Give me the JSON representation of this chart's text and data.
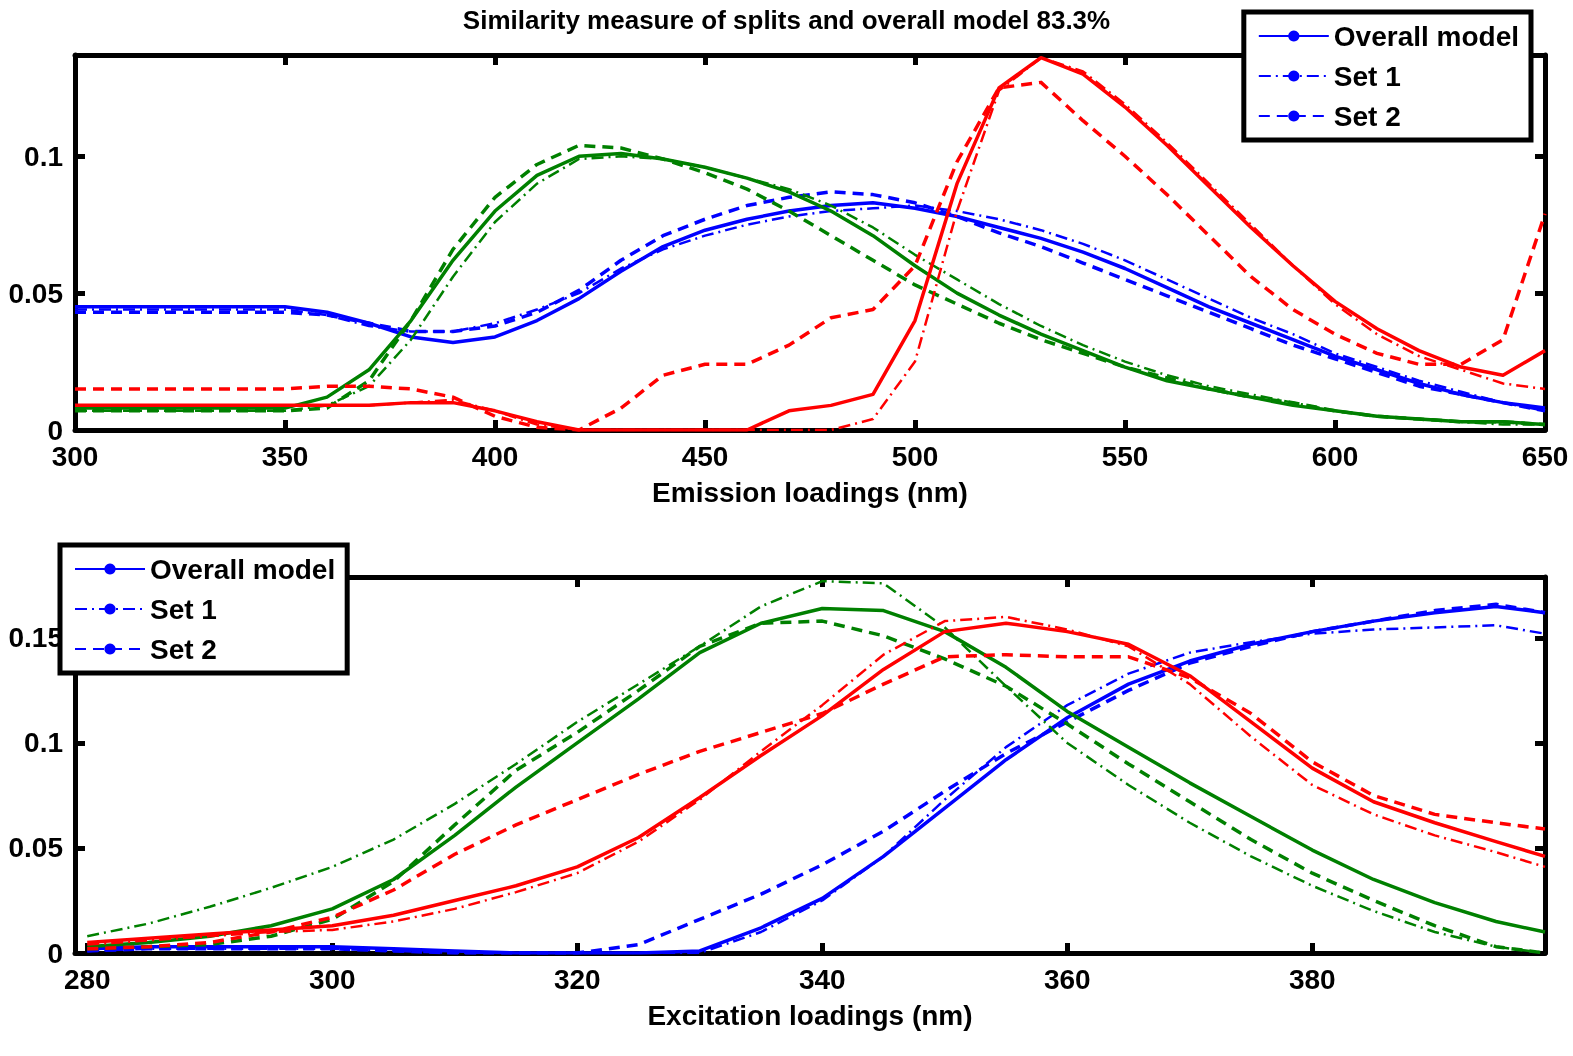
{
  "chart_data": [
    {
      "type": "line",
      "title": "Similarity measure of splits and overall model 83.3%",
      "xlabel": "Emission loadings (nm)",
      "legend": "top right",
      "x": [
        300,
        320,
        340,
        350,
        360,
        370,
        380,
        390,
        400,
        410,
        420,
        430,
        440,
        450,
        460,
        470,
        480,
        490,
        500,
        510,
        520,
        530,
        540,
        550,
        560,
        570,
        580,
        590,
        600,
        610,
        620,
        630,
        640,
        650
      ],
      "xlim": [
        300,
        650
      ],
      "xticks": [
        300,
        350,
        400,
        450,
        500,
        550,
        600,
        650
      ],
      "ylim": [
        0,
        0.137
      ],
      "yticks": [
        0,
        0.05,
        0.1
      ],
      "series": [
        {
          "name": "Overall model",
          "color": "#0000ff",
          "line_style": "solid",
          "values": [
            0.045,
            0.045,
            0.045,
            0.045,
            0.043,
            0.039,
            0.034,
            0.032,
            0.034,
            0.04,
            0.048,
            0.058,
            0.067,
            0.073,
            0.077,
            0.08,
            0.082,
            0.083,
            0.081,
            0.078,
            0.074,
            0.07,
            0.065,
            0.059,
            0.052,
            0.045,
            0.039,
            0.033,
            0.027,
            0.022,
            0.017,
            0.013,
            0.01,
            0.008
          ]
        },
        {
          "name": "Set 1",
          "color": "#0000ff",
          "line_style": "dashdot",
          "values": [
            0.044,
            0.044,
            0.044,
            0.044,
            0.042,
            0.038,
            0.036,
            0.036,
            0.039,
            0.044,
            0.05,
            0.059,
            0.066,
            0.071,
            0.075,
            0.078,
            0.08,
            0.081,
            0.082,
            0.08,
            0.077,
            0.073,
            0.068,
            0.062,
            0.055,
            0.048,
            0.041,
            0.035,
            0.028,
            0.023,
            0.018,
            0.014,
            0.01,
            0.007
          ]
        },
        {
          "name": "Set 2",
          "color": "#0000ff",
          "line_style": "dashed",
          "values": [
            0.043,
            0.043,
            0.043,
            0.043,
            0.042,
            0.039,
            0.036,
            0.036,
            0.038,
            0.043,
            0.051,
            0.062,
            0.071,
            0.077,
            0.082,
            0.085,
            0.087,
            0.086,
            0.083,
            0.078,
            0.072,
            0.067,
            0.061,
            0.055,
            0.049,
            0.043,
            0.037,
            0.031,
            0.026,
            0.021,
            0.016,
            0.013,
            0.01,
            0.007
          ]
        },
        {
          "color": "#008000",
          "line_style": "solid",
          "values": [
            0.008,
            0.008,
            0.008,
            0.008,
            0.012,
            0.022,
            0.04,
            0.062,
            0.08,
            0.093,
            0.1,
            0.101,
            0.099,
            0.096,
            0.092,
            0.087,
            0.08,
            0.071,
            0.06,
            0.05,
            0.042,
            0.035,
            0.029,
            0.023,
            0.018,
            0.015,
            0.012,
            0.009,
            0.007,
            0.005,
            0.004,
            0.003,
            0.003,
            0.002
          ]
        },
        {
          "color": "#008000",
          "line_style": "dashdot",
          "values": [
            0.007,
            0.007,
            0.007,
            0.007,
            0.009,
            0.016,
            0.033,
            0.056,
            0.076,
            0.09,
            0.099,
            0.1,
            0.099,
            0.096,
            0.092,
            0.088,
            0.082,
            0.074,
            0.064,
            0.055,
            0.046,
            0.038,
            0.031,
            0.025,
            0.02,
            0.016,
            0.013,
            0.01,
            0.007,
            0.005,
            0.004,
            0.003,
            0.002,
            0.002
          ]
        },
        {
          "color": "#008000",
          "line_style": "dashed",
          "values": [
            0.007,
            0.007,
            0.007,
            0.007,
            0.008,
            0.018,
            0.04,
            0.066,
            0.085,
            0.097,
            0.104,
            0.103,
            0.099,
            0.094,
            0.088,
            0.08,
            0.071,
            0.062,
            0.053,
            0.046,
            0.039,
            0.033,
            0.028,
            0.023,
            0.019,
            0.015,
            0.012,
            0.01,
            0.007,
            0.005,
            0.004,
            0.003,
            0.003,
            0.002
          ]
        },
        {
          "color": "#ff0000",
          "line_style": "solid",
          "values": [
            0.009,
            0.009,
            0.009,
            0.009,
            0.009,
            0.009,
            0.01,
            0.01,
            0.007,
            0.003,
            0,
            0,
            0,
            0,
            0,
            0.007,
            0.009,
            0.013,
            0.04,
            0.09,
            0.125,
            0.136,
            0.13,
            0.118,
            0.104,
            0.089,
            0.074,
            0.06,
            0.047,
            0.037,
            0.029,
            0.023,
            0.02,
            0.029
          ]
        },
        {
          "color": "#ff0000",
          "line_style": "dashdot",
          "values": [
            0.009,
            0.009,
            0.009,
            0.009,
            0.009,
            0.009,
            0.01,
            0.011,
            0.007,
            0.002,
            0,
            0,
            0,
            0,
            0,
            0,
            0,
            0.004,
            0.025,
            0.08,
            0.124,
            0.136,
            0.131,
            0.119,
            0.105,
            0.09,
            0.075,
            0.06,
            0.046,
            0.035,
            0.027,
            0.022,
            0.017,
            0.015
          ]
        },
        {
          "color": "#ff0000",
          "line_style": "dashed",
          "values": [
            0.015,
            0.015,
            0.015,
            0.015,
            0.016,
            0.016,
            0.015,
            0.012,
            0.005,
            0.001,
            0,
            0.008,
            0.02,
            0.024,
            0.024,
            0.031,
            0.041,
            0.044,
            0.06,
            0.098,
            0.125,
            0.127,
            0.113,
            0.1,
            0.086,
            0.071,
            0.056,
            0.044,
            0.035,
            0.028,
            0.024,
            0.024,
            0.033,
            0.079
          ]
        }
      ]
    },
    {
      "type": "line",
      "xlabel": "Excitation loadings (nm)",
      "legend": "top left",
      "x": [
        280,
        285,
        290,
        295,
        300,
        305,
        310,
        315,
        320,
        325,
        330,
        335,
        340,
        345,
        350,
        355,
        360,
        365,
        370,
        375,
        380,
        385,
        390,
        395,
        399
      ],
      "xlim": [
        279,
        399
      ],
      "xticks": [
        280,
        300,
        320,
        340,
        360,
        380
      ],
      "ylim": [
        0,
        0.179
      ],
      "yticks": [
        0,
        0.05,
        0.1,
        0.15
      ],
      "series": [
        {
          "name": "Overall model",
          "color": "#0000ff",
          "line_style": "solid",
          "values": [
            0.002,
            0.003,
            0.003,
            0.003,
            0.003,
            0.002,
            0.001,
            0,
            0,
            0,
            0.001,
            0.012,
            0.026,
            0.046,
            0.069,
            0.092,
            0.112,
            0.128,
            0.139,
            0.147,
            0.153,
            0.158,
            0.162,
            0.165,
            0.162
          ]
        },
        {
          "name": "Set 1",
          "color": "#0000ff",
          "line_style": "dashdot",
          "values": [
            0.001,
            0.002,
            0.002,
            0.002,
            0.002,
            0.001,
            0,
            0,
            0,
            0,
            0,
            0.01,
            0.025,
            0.046,
            0.073,
            0.098,
            0.118,
            0.133,
            0.143,
            0.148,
            0.152,
            0.154,
            0.155,
            0.156,
            0.152
          ]
        },
        {
          "name": "Set 2",
          "color": "#0000ff",
          "line_style": "dashed",
          "values": [
            0.001,
            0.002,
            0.002,
            0.002,
            0.002,
            0.001,
            0,
            0,
            0,
            0.004,
            0.016,
            0.028,
            0.042,
            0.058,
            0.077,
            0.095,
            0.11,
            0.125,
            0.138,
            0.146,
            0.153,
            0.158,
            0.163,
            0.166,
            0.162
          ]
        },
        {
          "color": "#008000",
          "line_style": "solid",
          "values": [
            0.003,
            0.005,
            0.008,
            0.013,
            0.021,
            0.035,
            0.056,
            0.079,
            0.1,
            0.121,
            0.143,
            0.157,
            0.164,
            0.163,
            0.153,
            0.136,
            0.115,
            0.098,
            0.081,
            0.065,
            0.049,
            0.035,
            0.024,
            0.015,
            0.01
          ]
        },
        {
          "color": "#008000",
          "line_style": "dashdot",
          "values": [
            0.008,
            0.014,
            0.022,
            0.031,
            0.041,
            0.054,
            0.071,
            0.09,
            0.11,
            0.128,
            0.146,
            0.165,
            0.177,
            0.176,
            0.155,
            0.127,
            0.1,
            0.08,
            0.062,
            0.046,
            0.032,
            0.02,
            0.01,
            0.003,
            0
          ]
        },
        {
          "color": "#008000",
          "line_style": "dashed",
          "values": [
            0.002,
            0.003,
            0.004,
            0.008,
            0.016,
            0.034,
            0.061,
            0.087,
            0.105,
            0.125,
            0.146,
            0.157,
            0.158,
            0.151,
            0.14,
            0.127,
            0.109,
            0.09,
            0.072,
            0.054,
            0.038,
            0.025,
            0.013,
            0.003,
            0
          ]
        },
        {
          "color": "#ff0000",
          "line_style": "solid",
          "values": [
            0.005,
            0.007,
            0.009,
            0.011,
            0.013,
            0.018,
            0.025,
            0.032,
            0.041,
            0.055,
            0.074,
            0.094,
            0.113,
            0.135,
            0.153,
            0.157,
            0.153,
            0.147,
            0.132,
            0.11,
            0.088,
            0.072,
            0.062,
            0.053,
            0.046
          ]
        },
        {
          "color": "#ff0000",
          "line_style": "dashdot",
          "values": [
            0.004,
            0.006,
            0.008,
            0.01,
            0.011,
            0.015,
            0.021,
            0.029,
            0.038,
            0.053,
            0.073,
            0.096,
            0.118,
            0.142,
            0.158,
            0.16,
            0.154,
            0.146,
            0.128,
            0.103,
            0.08,
            0.066,
            0.056,
            0.048,
            0.041
          ]
        },
        {
          "color": "#ff0000",
          "line_style": "dashed",
          "values": [
            0.002,
            0.003,
            0.005,
            0.01,
            0.017,
            0.03,
            0.047,
            0.061,
            0.073,
            0.085,
            0.096,
            0.105,
            0.114,
            0.128,
            0.141,
            0.142,
            0.141,
            0.141,
            0.131,
            0.114,
            0.091,
            0.075,
            0.066,
            0.062,
            0.059
          ]
        }
      ]
    }
  ]
}
